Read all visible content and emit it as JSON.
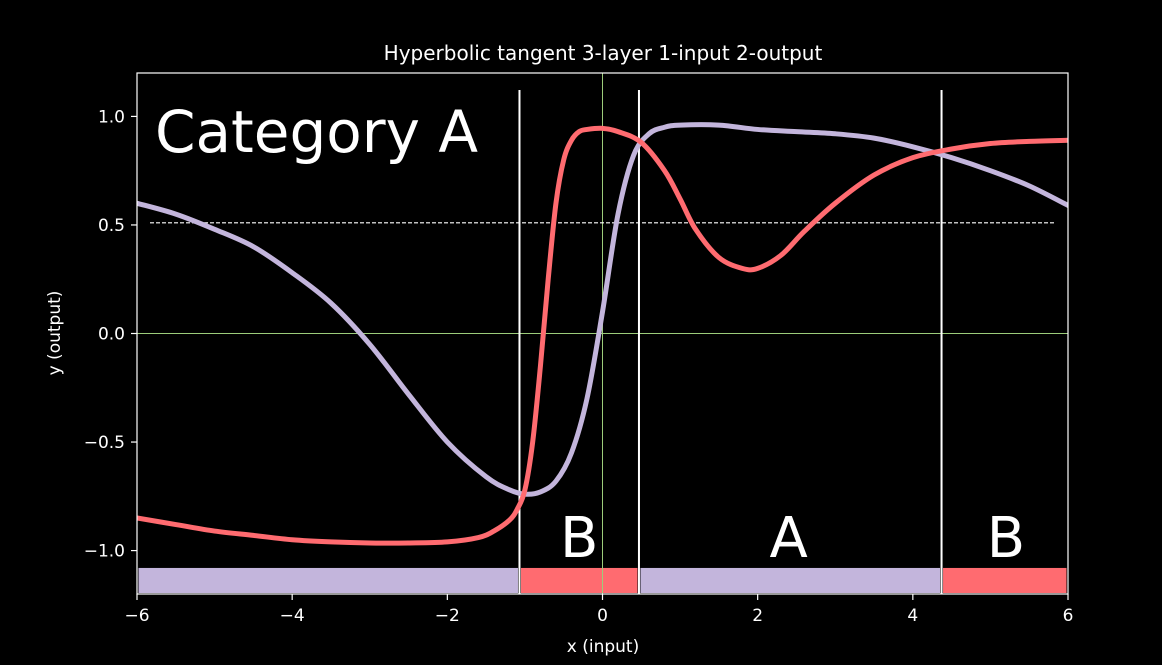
{
  "chart_data": {
    "type": "line",
    "title": "Hyperbolic tangent 3-layer 1-input 2-output",
    "xlabel": "x (input)",
    "ylabel": "y (output)",
    "xlim": [
      -6,
      6
    ],
    "ylim": [
      -1.2,
      1.2
    ],
    "x_ticks": [
      -6,
      -4,
      -2,
      0,
      2,
      4,
      6
    ],
    "x_tick_labels": [
      "−6",
      "−4",
      "−2",
      "0",
      "2",
      "4",
      "6"
    ],
    "y_ticks": [
      1.0,
      0.5,
      0.0,
      -0.5,
      -1.0
    ],
    "y_tick_labels": [
      "1.0",
      "0.5",
      "0.0",
      "−0.5",
      "−1.0"
    ],
    "grid": false,
    "colors": {
      "background": "#000000",
      "series_a": "#c3b5dc",
      "series_b": "#ff6b70",
      "zero_lines": "#9ccc7a",
      "threshold": "#ffffff",
      "boundaries": "#ffffff",
      "text": "#ffffff"
    },
    "series": [
      {
        "id": "a",
        "color": "#c3b5dc",
        "x": [
          -6,
          -5.5,
          -5,
          -4.5,
          -4,
          -3.5,
          -3,
          -2.5,
          -2,
          -1.5,
          -1.2,
          -1,
          -0.8,
          -0.6,
          -0.4,
          -0.2,
          0,
          0.2,
          0.4,
          0.6,
          0.8,
          1,
          1.5,
          2,
          2.5,
          3,
          3.5,
          4,
          4.5,
          5,
          5.5,
          6
        ],
        "y": [
          0.6,
          0.55,
          0.48,
          0.4,
          0.28,
          0.14,
          -0.05,
          -0.28,
          -0.5,
          -0.66,
          -0.72,
          -0.74,
          -0.73,
          -0.68,
          -0.55,
          -0.3,
          0.1,
          0.55,
          0.82,
          0.92,
          0.95,
          0.96,
          0.96,
          0.94,
          0.93,
          0.92,
          0.9,
          0.86,
          0.81,
          0.75,
          0.68,
          0.59
        ]
      },
      {
        "id": "b",
        "color": "#ff6b70",
        "x": [
          -6,
          -5.5,
          -5,
          -4.5,
          -4,
          -3.5,
          -3,
          -2.5,
          -2,
          -1.6,
          -1.4,
          -1.2,
          -1.1,
          -1.0,
          -0.9,
          -0.8,
          -0.7,
          -0.6,
          -0.5,
          -0.4,
          -0.3,
          -0.2,
          0,
          0.2,
          0.5,
          0.8,
          1.0,
          1.2,
          1.5,
          1.8,
          2.0,
          2.3,
          2.6,
          3.0,
          3.5,
          4.0,
          4.5,
          5.0,
          5.5,
          6.0
        ],
        "y": [
          -0.85,
          -0.88,
          -0.91,
          -0.93,
          -0.95,
          -0.96,
          -0.965,
          -0.965,
          -0.96,
          -0.94,
          -0.91,
          -0.86,
          -0.81,
          -0.72,
          -0.5,
          -0.15,
          0.25,
          0.6,
          0.8,
          0.89,
          0.93,
          0.94,
          0.945,
          0.93,
          0.88,
          0.75,
          0.62,
          0.48,
          0.35,
          0.3,
          0.3,
          0.36,
          0.47,
          0.6,
          0.73,
          0.81,
          0.85,
          0.875,
          0.885,
          0.89
        ]
      }
    ],
    "threshold_line": {
      "y": 0.51,
      "style": "dashed"
    },
    "decision_boundaries": [
      -1.07,
      0.47,
      4.37
    ],
    "category_bars": [
      {
        "from": -6,
        "to": -1.07,
        "category": "A",
        "color": "#c3b5dc"
      },
      {
        "from": -1.07,
        "to": 0.47,
        "category": "B",
        "color": "#ff6b70"
      },
      {
        "from": 0.47,
        "to": 4.37,
        "category": "A",
        "color": "#c3b5dc"
      },
      {
        "from": 4.37,
        "to": 6,
        "category": "B",
        "color": "#ff6b70"
      }
    ],
    "annotations": {
      "main": "Category A",
      "regions": [
        {
          "text": "B",
          "x": -0.3
        },
        {
          "text": "A",
          "x": 2.4
        },
        {
          "text": "B",
          "x": 5.2
        }
      ]
    }
  }
}
